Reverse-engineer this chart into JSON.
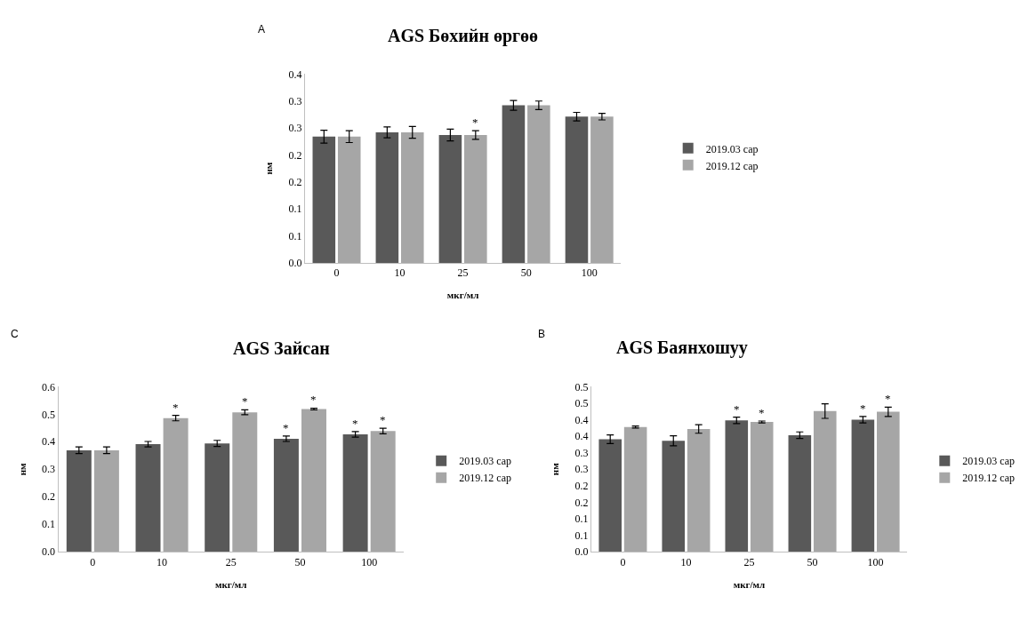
{
  "chart_data": [
    {
      "type": "bar",
      "title": "AGS Бөхийн өргөө",
      "xlabel": "мкг/мл",
      "ylabel": "нм",
      "categories": [
        "0",
        "10",
        "25",
        "50",
        "100"
      ],
      "series": [
        {
          "name": "2019.03 сар",
          "color": "#595959",
          "values": [
            0.234,
            0.242,
            0.237,
            0.292,
            0.271
          ],
          "errors": [
            0.012,
            0.01,
            0.011,
            0.009,
            0.008
          ]
        },
        {
          "name": "2019.12 сар",
          "color": "#a6a6a6",
          "values": [
            0.234,
            0.242,
            0.237,
            0.292,
            0.271
          ],
          "errors": [
            0.011,
            0.011,
            0.008,
            0.008,
            0.006
          ]
        }
      ],
      "ylim": [
        0,
        0.35
      ],
      "yticks": [
        {
          "value": 0,
          "label": "0.0"
        },
        {
          "value": 0.05,
          "label": "0.1"
        },
        {
          "value": 0.1,
          "label": "0.1"
        },
        {
          "value": 0.15,
          "label": "0.2"
        },
        {
          "value": 0.2,
          "label": "0.2"
        },
        {
          "value": 0.25,
          "label": "0.3"
        },
        {
          "value": 0.3,
          "label": "0.3"
        },
        {
          "value": 0.35,
          "label": "0.4"
        }
      ],
      "annotations": [
        "A",
        {
          "text": "*",
          "x": "25",
          "y": 0.237
        }
      ],
      "legend": "right"
    },
    {
      "type": "bar",
      "title": "AGS Зайсан",
      "xlabel": "мкг/мл",
      "ylabel": "нм",
      "categories": [
        "0",
        "10",
        "25",
        "50",
        "100"
      ],
      "series": [
        {
          "name": "2019.03 сар",
          "color": "#595959",
          "values": [
            0.369,
            0.391,
            0.394,
            0.411,
            0.427
          ],
          "errors": [
            0.012,
            0.01,
            0.011,
            0.01,
            0.01
          ]
        },
        {
          "name": "2019.12 сар",
          "color": "#a6a6a6",
          "values": [
            0.369,
            0.486,
            0.507,
            0.519,
            0.439
          ],
          "errors": [
            0.012,
            0.01,
            0.009,
            0.003,
            0.01
          ]
        }
      ],
      "ylim": [
        0,
        0.6
      ],
      "yticks": [
        {
          "value": 0,
          "label": "0.0"
        },
        0.1,
        0.2,
        0.3,
        0.4,
        0.5,
        0.6
      ],
      "annotations": [
        "C",
        {
          "text": "*",
          "x": "10",
          "y": 0.486
        },
        {
          "text": "*",
          "x": "25",
          "y": 0.507
        },
        {
          "text": "*",
          "x": "50",
          "y": 0.411
        },
        {
          "text": "*",
          "x": "50",
          "y": 0.519
        },
        {
          "text": "*",
          "x": "100",
          "y": 0.427
        },
        {
          "text": "*",
          "x": "100",
          "y": 0.439
        }
      ],
      "legend": "right"
    },
    {
      "type": "bar",
      "title": "AGS Баянхошуу",
      "xlabel": "мкг/мл",
      "ylabel": "нм",
      "categories": [
        "0",
        "10",
        "25",
        "50",
        "100"
      ],
      "series": [
        {
          "name": "2019.03 сар",
          "color": "#595959",
          "values": [
            0.341,
            0.336,
            0.398,
            0.353,
            0.4
          ],
          "errors": [
            0.013,
            0.015,
            0.01,
            0.01,
            0.01
          ]
        },
        {
          "name": "2019.12 сар",
          "color": "#a6a6a6",
          "values": [
            0.378,
            0.372,
            0.393,
            0.426,
            0.424
          ],
          "errors": [
            0.003,
            0.013,
            0.003,
            0.022,
            0.014
          ]
        }
      ],
      "ylim": [
        0,
        0.5
      ],
      "yticks": [
        {
          "value": 0,
          "label": "0.0"
        },
        {
          "value": 0.05,
          "label": "0.1"
        },
        {
          "value": 0.1,
          "label": "0.1"
        },
        {
          "value": 0.15,
          "label": "0.2"
        },
        {
          "value": 0.2,
          "label": "0.2"
        },
        {
          "value": 0.25,
          "label": "0.3"
        },
        {
          "value": 0.3,
          "label": "0.3"
        },
        {
          "value": 0.35,
          "label": "0.4"
        },
        {
          "value": 0.4,
          "label": "0.4"
        },
        {
          "value": 0.45,
          "label": "0.5"
        },
        {
          "value": 0.5,
          "label": "0.5"
        }
      ],
      "annotations": [
        "B",
        {
          "text": "*",
          "x": "25",
          "y": 0.398
        },
        {
          "text": "*",
          "x": "25",
          "y": 0.393
        },
        {
          "text": "*",
          "x": "100",
          "y": 0.4
        },
        {
          "text": "*",
          "x": "100",
          "y": 0.424
        }
      ],
      "legend": "right"
    }
  ]
}
